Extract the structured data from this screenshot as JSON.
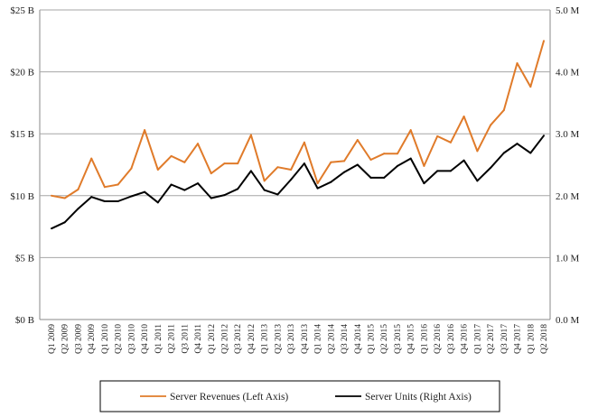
{
  "chart_data": {
    "type": "line",
    "categories": [
      "Q1 2009",
      "Q2 2009",
      "Q3 2009",
      "Q4 2009",
      "Q1 2010",
      "Q2 2010",
      "Q3 2010",
      "Q4 2010",
      "Q1 2011",
      "Q2 2011",
      "Q3 2011",
      "Q4 2011",
      "Q1 2012",
      "Q2 2012",
      "Q3 2012",
      "Q4 2012",
      "Q1 2013",
      "Q2 2013",
      "Q3 2013",
      "Q4 2013",
      "Q1 2014",
      "Q2 2014",
      "Q3 2014",
      "Q4 2014",
      "Q1 2015",
      "Q2 2015",
      "Q3 2015",
      "Q4 2015",
      "Q1 2016",
      "Q2 2016",
      "Q3 2016",
      "Q4 2016",
      "Q1 2017",
      "Q2 2017",
      "Q3 2017",
      "Q4 2017",
      "Q1 2018",
      "Q2 2018"
    ],
    "series": [
      {
        "name": "Server Revenues (Left Axis)",
        "axis": "left",
        "color": "#E07B2A",
        "values": [
          10.0,
          9.8,
          10.5,
          13.0,
          10.7,
          10.9,
          12.2,
          15.3,
          12.1,
          13.2,
          12.7,
          14.2,
          11.8,
          12.6,
          12.6,
          14.9,
          11.2,
          12.3,
          12.1,
          14.3,
          11.0,
          12.7,
          12.8,
          14.5,
          12.9,
          13.4,
          13.4,
          15.3,
          12.4,
          14.8,
          14.3,
          16.4,
          13.6,
          15.7,
          16.9,
          20.7,
          18.8,
          22.5
        ]
      },
      {
        "name": "Server Units (Right Axis)",
        "axis": "right",
        "color": "#000000",
        "values": [
          1.47,
          1.57,
          1.79,
          1.98,
          1.91,
          1.91,
          1.99,
          2.06,
          1.89,
          2.18,
          2.09,
          2.2,
          1.96,
          2.01,
          2.11,
          2.4,
          2.09,
          2.02,
          2.26,
          2.52,
          2.12,
          2.22,
          2.38,
          2.5,
          2.29,
          2.29,
          2.48,
          2.6,
          2.2,
          2.4,
          2.4,
          2.57,
          2.24,
          2.45,
          2.69,
          2.84,
          2.69,
          2.97
        ]
      }
    ],
    "left_axis": {
      "ylim": [
        0,
        25
      ],
      "ticks": [
        "$0 B",
        "$5 B",
        "$10 B",
        "$15 B",
        "$20 B",
        "$25 B"
      ]
    },
    "right_axis": {
      "ylim": [
        0,
        5
      ],
      "ticks": [
        "0.0 M",
        "1.0 M",
        "2.0 M",
        "3.0 M",
        "4.0 M",
        "5.0 M"
      ]
    },
    "grid": true,
    "legend": "bottom-center"
  }
}
